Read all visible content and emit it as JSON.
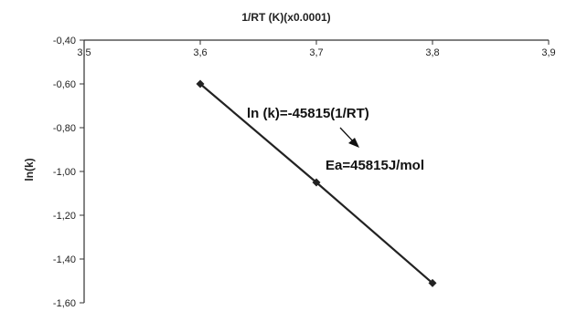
{
  "chart_data": {
    "type": "line",
    "title": "",
    "xlabel": "1/RT (K)(x0.0001)",
    "ylabel": "ln(k)",
    "xlim": [
      3.5,
      3.9
    ],
    "ylim": [
      -1.6,
      -0.4
    ],
    "x_axis_position": "top",
    "x_ticks": [
      3.5,
      3.6,
      3.7,
      3.8,
      3.9
    ],
    "x_tick_labels": [
      "3,5",
      "3,6",
      "3,7",
      "3,8",
      "3,9"
    ],
    "y_ticks": [
      -0.4,
      -0.6,
      -0.8,
      -1.0,
      -1.2,
      -1.4,
      -1.6
    ],
    "y_tick_labels": [
      "-0,40",
      "-0,60",
      "-0,80",
      "-1,00",
      "-1,20",
      "-1,40",
      "-1,60"
    ],
    "grid": false,
    "legend": "none",
    "series": [
      {
        "x": [
          3.6,
          3.7,
          3.8
        ],
        "y": [
          -0.6,
          -1.05,
          -1.51
        ],
        "color": "#222222",
        "marker": "diamond"
      }
    ],
    "annotations": [
      {
        "text": "ln (k)=-45815(1/RT)"
      },
      {
        "text": "Ea=45815J/mol"
      }
    ]
  }
}
